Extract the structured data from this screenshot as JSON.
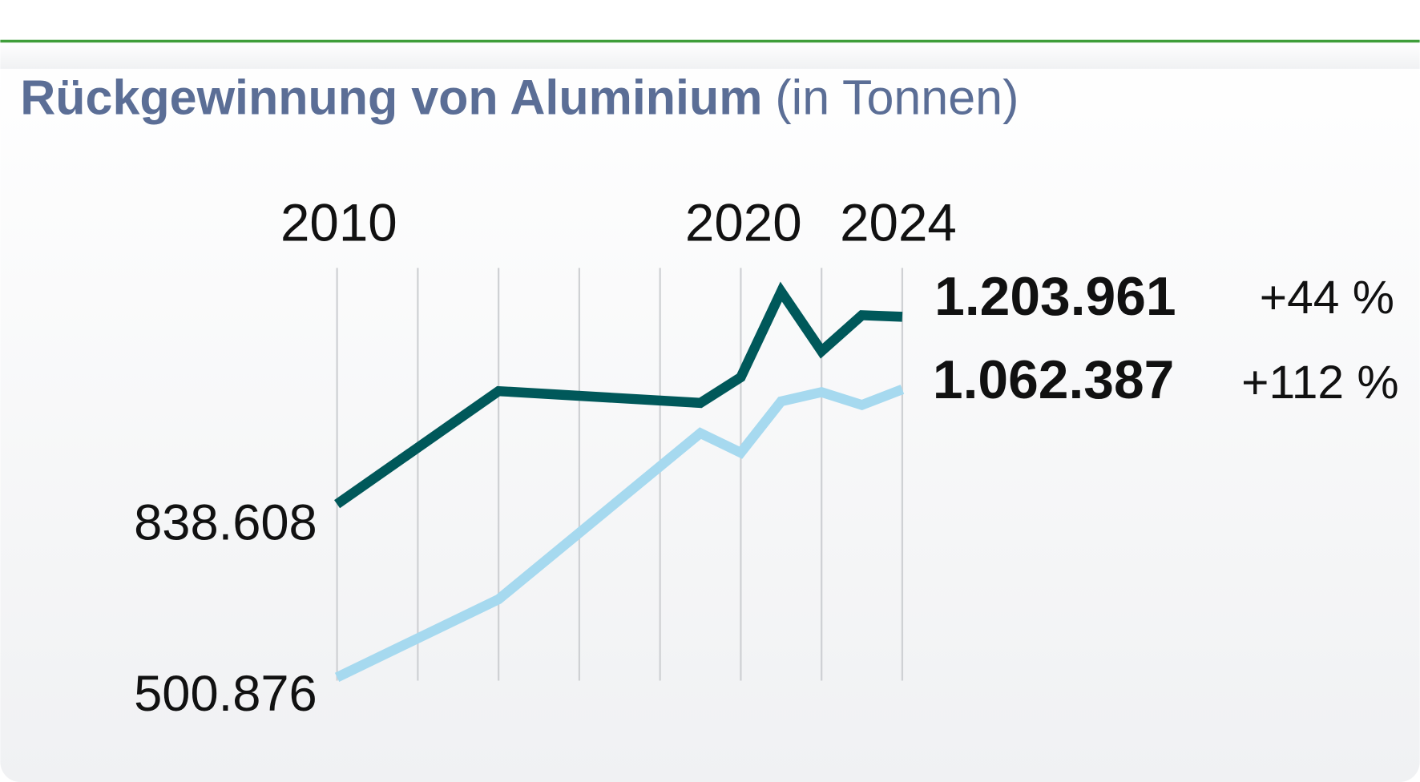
{
  "chart_data": {
    "type": "line",
    "title": "Rückgewinnung von Aluminium",
    "subtitle": "(in Tonnen)",
    "x_tick_labels": [
      "2010",
      "2020",
      "2024"
    ],
    "x_range": [
      2010,
      2024
    ],
    "grid": "vertical lines every 2 years",
    "y_start_labels": [
      "838.608",
      "500.876"
    ],
    "series": [
      {
        "name": "series-dark",
        "color": "#00585a",
        "x": [
          2010,
          2014,
          2019,
          2020,
          2021,
          2022,
          2023,
          2024
        ],
        "values": [
          838608,
          1059000,
          1036000,
          1086000,
          1253000,
          1137000,
          1207000,
          1203961
        ],
        "end_label": "1.203.961",
        "change_label": "+44 %"
      },
      {
        "name": "series-light",
        "color": "#a6d9ef",
        "x": [
          2010,
          2014,
          2019,
          2020,
          2021,
          2022,
          2023,
          2024
        ],
        "values": [
          500876,
          653000,
          977000,
          939000,
          1039000,
          1057000,
          1032000,
          1062387
        ],
        "end_label": "1.062.387",
        "change_label": "+112 %"
      }
    ]
  },
  "colors": {
    "title": "#5b6e96",
    "rule": "#3f9e3a"
  }
}
